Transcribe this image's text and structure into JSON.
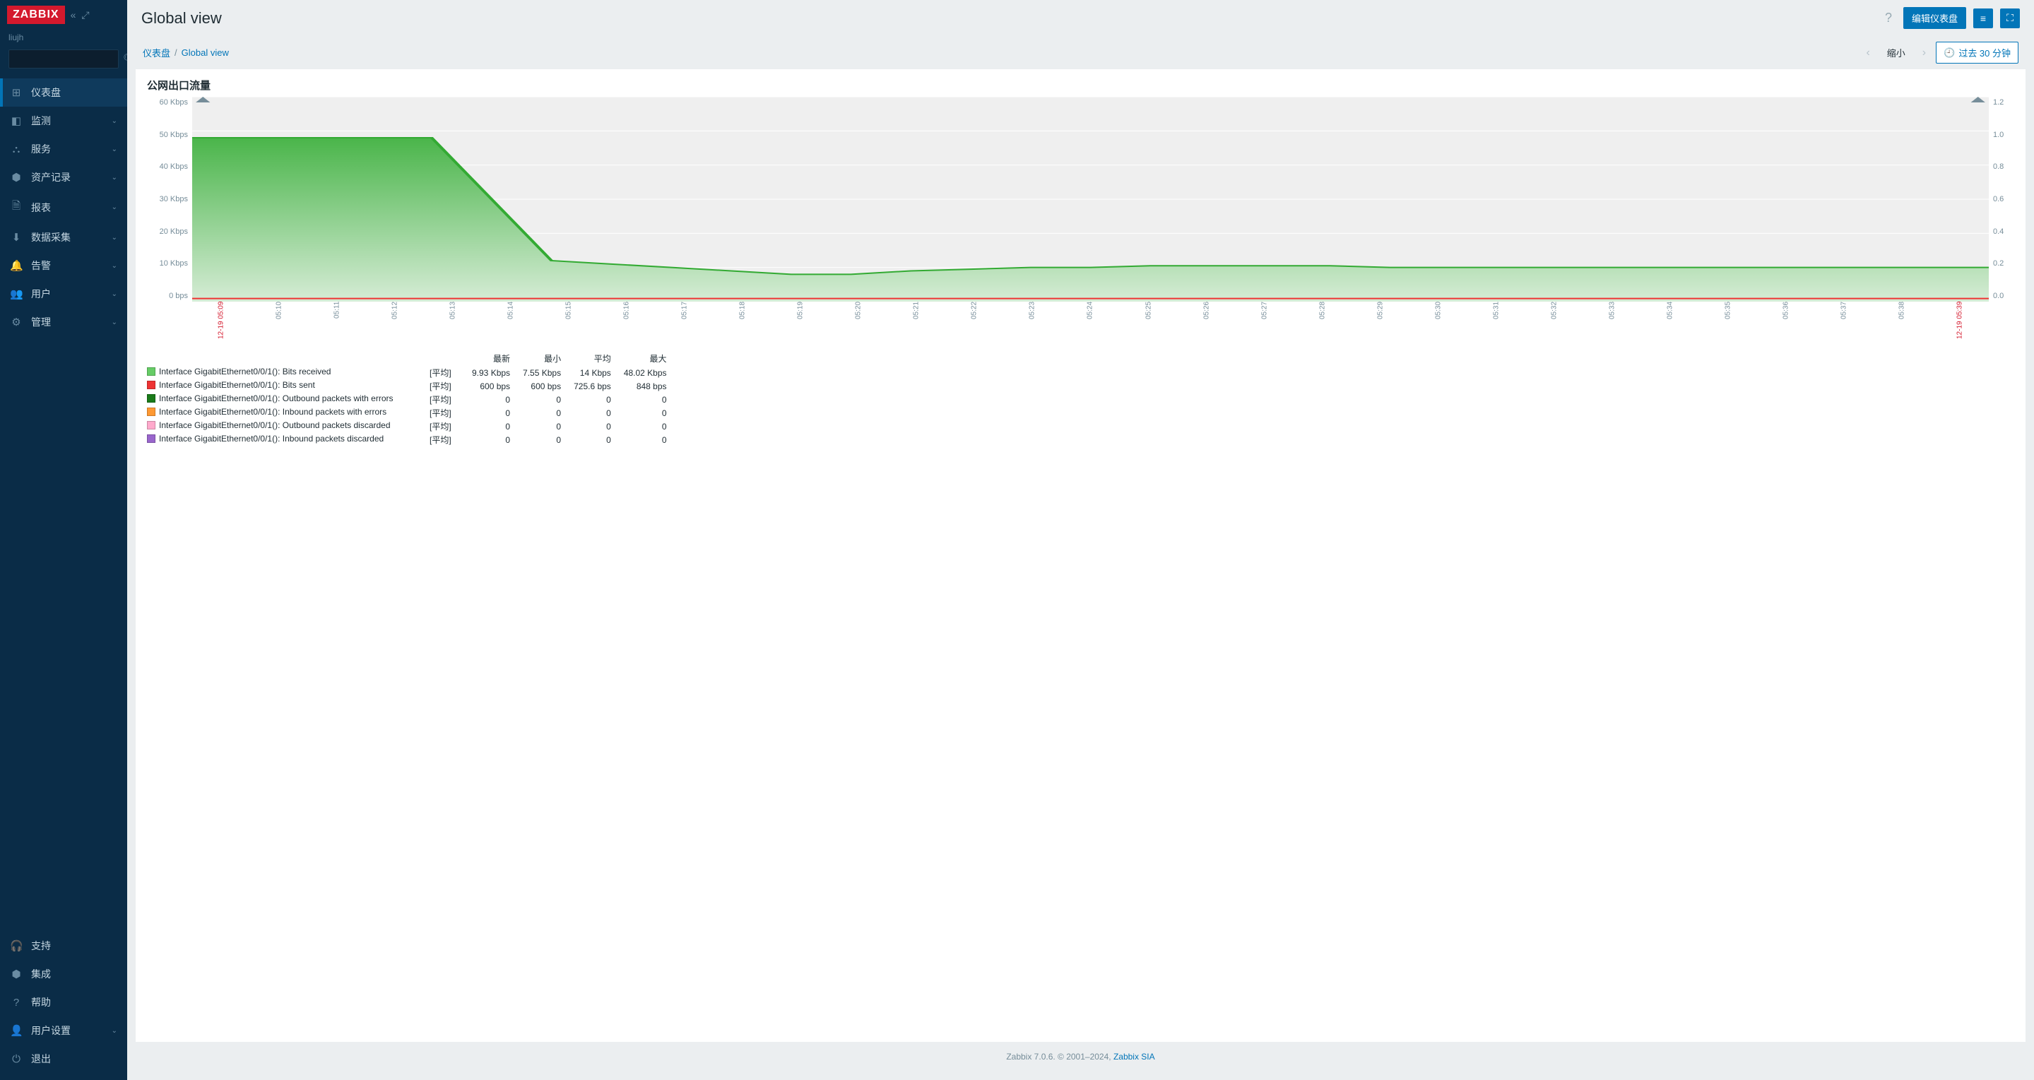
{
  "sidebar": {
    "logo_text": "ZABBIX",
    "user": "liujh",
    "search_placeholder": "",
    "nav_main": [
      {
        "icon": "⊞",
        "label": "仪表盘",
        "active": true,
        "expandable": false
      },
      {
        "icon": "◧",
        "label": "监测",
        "expandable": true
      },
      {
        "icon": "⛬",
        "label": "服务",
        "expandable": true
      },
      {
        "icon": "⬢",
        "label": "资产记录",
        "expandable": true
      },
      {
        "icon": "🗎",
        "label": "报表",
        "expandable": true
      },
      {
        "icon": "⬇",
        "label": "数据采集",
        "expandable": true
      },
      {
        "icon": "🔔",
        "label": "告警",
        "expandable": true
      },
      {
        "icon": "👥",
        "label": "用户",
        "expandable": true
      },
      {
        "icon": "⚙",
        "label": "管理",
        "expandable": true
      }
    ],
    "nav_bottom": [
      {
        "icon": "🎧",
        "label": "支持"
      },
      {
        "icon": "⬢",
        "label": "集成"
      },
      {
        "icon": "?",
        "label": "帮助"
      },
      {
        "icon": "👤",
        "label": "用户设置",
        "expandable": true
      },
      {
        "icon": "⏻",
        "label": "退出"
      }
    ]
  },
  "header": {
    "title": "Global view",
    "edit_button": "编辑仪表盘"
  },
  "breadcrumbs": {
    "root": "仪表盘",
    "current": "Global view",
    "zoom_out": "缩小",
    "time_range": "过去 30 分钟"
  },
  "widget": {
    "title": "公网出口流量",
    "chart": {
      "type": "area",
      "background_color": "#efefef",
      "grid_color": "#ffffff",
      "y_left": {
        "labels": [
          "60 Kbps",
          "50 Kbps",
          "40 Kbps",
          "30 Kbps",
          "20 Kbps",
          "10 Kbps",
          "0 bps"
        ],
        "min": 0,
        "max": 60
      },
      "y_right": {
        "labels": [
          "1.2",
          "1.0",
          "0.8",
          "0.6",
          "0.4",
          "0.2",
          "0.0"
        ],
        "min": 0,
        "max": 1.2
      },
      "x_labels": [
        "12-19 05:09",
        "05:10",
        "05:11",
        "05:12",
        "05:13",
        "05:14",
        "05:15",
        "05:16",
        "05:17",
        "05:18",
        "05:19",
        "05:20",
        "05:21",
        "05:22",
        "05:23",
        "05:24",
        "05:25",
        "05:26",
        "05:27",
        "05:28",
        "05:29",
        "05:30",
        "05:31",
        "05:32",
        "05:33",
        "05:34",
        "05:35",
        "05:36",
        "05:37",
        "05:38",
        "12-19 05:39"
      ],
      "series_green": {
        "color_line": "#33aa33",
        "color_fill_top": "#4ab54a",
        "color_fill_bottom": "#d6ecd6",
        "values": [
          48,
          48,
          48,
          48,
          48,
          30,
          12,
          11,
          10,
          9,
          8,
          8,
          9,
          9.5,
          10,
          10,
          10.5,
          10.5,
          10.5,
          10.5,
          10,
          10,
          10,
          10,
          10,
          10,
          10,
          10,
          10,
          10,
          10
        ]
      },
      "series_red": {
        "color": "#ee3333",
        "value_constant": 0.9
      },
      "tick_marker_color": "#768d99"
    },
    "legend": {
      "headers": [
        "最新",
        "最小",
        "平均",
        "最大"
      ],
      "agg_label": "[平均]",
      "rows": [
        {
          "swatch": "#66cc66",
          "name": "Interface GigabitEthernet0/0/1(): Bits received",
          "latest": "9.93 Kbps",
          "min": "7.55 Kbps",
          "avg": "14 Kbps",
          "max": "48.02 Kbps"
        },
        {
          "swatch": "#ee3333",
          "name": "Interface GigabitEthernet0/0/1(): Bits sent",
          "latest": "600 bps",
          "min": "600 bps",
          "avg": "725.6 bps",
          "max": "848 bps"
        },
        {
          "swatch": "#1a7a1a",
          "name": "Interface GigabitEthernet0/0/1(): Outbound packets with errors",
          "latest": "0",
          "min": "0",
          "avg": "0",
          "max": "0"
        },
        {
          "swatch": "#ff9933",
          "name": "Interface GigabitEthernet0/0/1(): Inbound packets with errors",
          "latest": "0",
          "min": "0",
          "avg": "0",
          "max": "0"
        },
        {
          "swatch": "#ffaacc",
          "name": "Interface GigabitEthernet0/0/1(): Outbound packets discarded",
          "latest": "0",
          "min": "0",
          "avg": "0",
          "max": "0"
        },
        {
          "swatch": "#9966cc",
          "name": "Interface GigabitEthernet0/0/1(): Inbound packets discarded",
          "latest": "0",
          "min": "0",
          "avg": "0",
          "max": "0"
        }
      ]
    }
  },
  "footer": {
    "text_prefix": "Zabbix 7.0.6. © 2001–2024, ",
    "link_text": "Zabbix SIA"
  }
}
